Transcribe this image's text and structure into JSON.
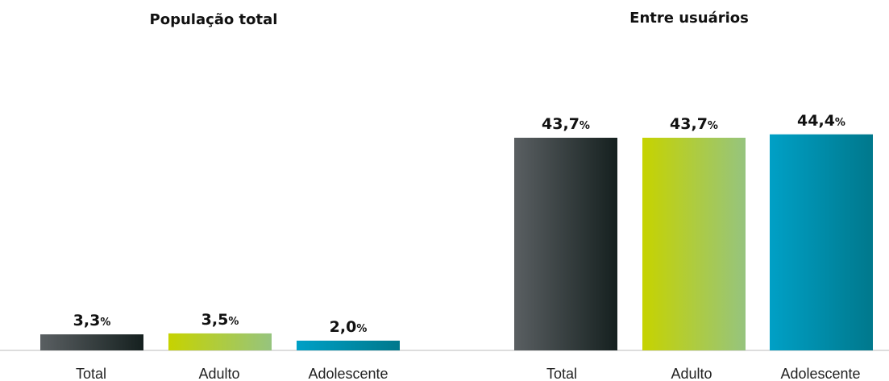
{
  "chart_data": [
    {
      "type": "bar",
      "title": "População total",
      "categories": [
        "Total",
        "Adulto",
        "Adolescente"
      ],
      "values": [
        3.3,
        3.5,
        2.0
      ],
      "value_labels": [
        "3,3",
        "3,5",
        "2,0"
      ],
      "unit": "%",
      "ylim": [
        0,
        46
      ],
      "grid": false,
      "legend": "none"
    },
    {
      "type": "bar",
      "title": "Entre usuários",
      "categories": [
        "Total",
        "Adulto",
        "Adolescente"
      ],
      "values": [
        43.7,
        43.7,
        44.4
      ],
      "value_labels": [
        "43,7",
        "43,7",
        "44,4"
      ],
      "unit": "%",
      "ylim": [
        0,
        46
      ],
      "grid": false,
      "legend": "none"
    }
  ],
  "colors": {
    "total": [
      "#5a5f62",
      "#15201f"
    ],
    "adulto": [
      "#c6d300",
      "#96c47e"
    ],
    "adolescente": [
      "#00a0c6",
      "#00788c"
    ],
    "baseline": "#bbbbbb"
  }
}
